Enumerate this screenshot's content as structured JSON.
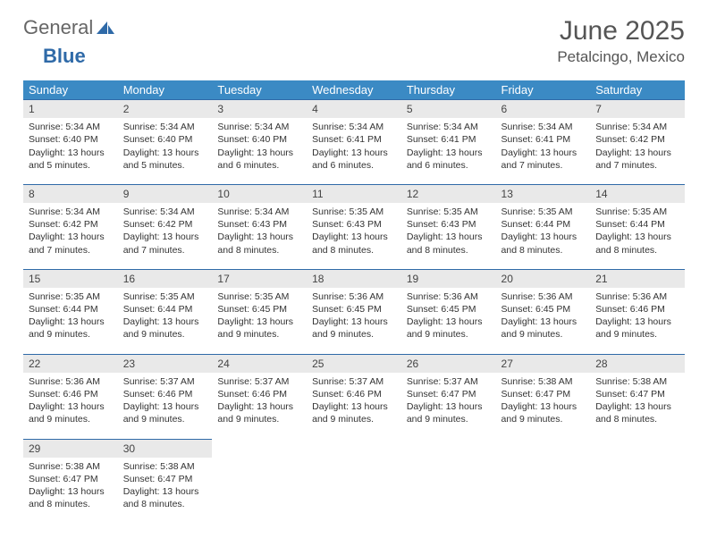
{
  "brand": {
    "part1": "General",
    "part2": "Blue"
  },
  "title": "June 2025",
  "location": "Petalcingo, Mexico",
  "colors": {
    "header_bg": "#3b8ac4",
    "header_text": "#ffffff",
    "daynum_bg": "#e9e9e9",
    "daynum_border": "#2f6aa8",
    "text": "#333333",
    "title_text": "#555555",
    "logo_blue": "#2f6aa8"
  },
  "weekdays": [
    "Sunday",
    "Monday",
    "Tuesday",
    "Wednesday",
    "Thursday",
    "Friday",
    "Saturday"
  ],
  "weeks": [
    [
      {
        "d": "1",
        "sr": "Sunrise: 5:34 AM",
        "ss": "Sunset: 6:40 PM",
        "dl1": "Daylight: 13 hours",
        "dl2": "and 5 minutes."
      },
      {
        "d": "2",
        "sr": "Sunrise: 5:34 AM",
        "ss": "Sunset: 6:40 PM",
        "dl1": "Daylight: 13 hours",
        "dl2": "and 5 minutes."
      },
      {
        "d": "3",
        "sr": "Sunrise: 5:34 AM",
        "ss": "Sunset: 6:40 PM",
        "dl1": "Daylight: 13 hours",
        "dl2": "and 6 minutes."
      },
      {
        "d": "4",
        "sr": "Sunrise: 5:34 AM",
        "ss": "Sunset: 6:41 PM",
        "dl1": "Daylight: 13 hours",
        "dl2": "and 6 minutes."
      },
      {
        "d": "5",
        "sr": "Sunrise: 5:34 AM",
        "ss": "Sunset: 6:41 PM",
        "dl1": "Daylight: 13 hours",
        "dl2": "and 6 minutes."
      },
      {
        "d": "6",
        "sr": "Sunrise: 5:34 AM",
        "ss": "Sunset: 6:41 PM",
        "dl1": "Daylight: 13 hours",
        "dl2": "and 7 minutes."
      },
      {
        "d": "7",
        "sr": "Sunrise: 5:34 AM",
        "ss": "Sunset: 6:42 PM",
        "dl1": "Daylight: 13 hours",
        "dl2": "and 7 minutes."
      }
    ],
    [
      {
        "d": "8",
        "sr": "Sunrise: 5:34 AM",
        "ss": "Sunset: 6:42 PM",
        "dl1": "Daylight: 13 hours",
        "dl2": "and 7 minutes."
      },
      {
        "d": "9",
        "sr": "Sunrise: 5:34 AM",
        "ss": "Sunset: 6:42 PM",
        "dl1": "Daylight: 13 hours",
        "dl2": "and 7 minutes."
      },
      {
        "d": "10",
        "sr": "Sunrise: 5:34 AM",
        "ss": "Sunset: 6:43 PM",
        "dl1": "Daylight: 13 hours",
        "dl2": "and 8 minutes."
      },
      {
        "d": "11",
        "sr": "Sunrise: 5:35 AM",
        "ss": "Sunset: 6:43 PM",
        "dl1": "Daylight: 13 hours",
        "dl2": "and 8 minutes."
      },
      {
        "d": "12",
        "sr": "Sunrise: 5:35 AM",
        "ss": "Sunset: 6:43 PM",
        "dl1": "Daylight: 13 hours",
        "dl2": "and 8 minutes."
      },
      {
        "d": "13",
        "sr": "Sunrise: 5:35 AM",
        "ss": "Sunset: 6:44 PM",
        "dl1": "Daylight: 13 hours",
        "dl2": "and 8 minutes."
      },
      {
        "d": "14",
        "sr": "Sunrise: 5:35 AM",
        "ss": "Sunset: 6:44 PM",
        "dl1": "Daylight: 13 hours",
        "dl2": "and 8 minutes."
      }
    ],
    [
      {
        "d": "15",
        "sr": "Sunrise: 5:35 AM",
        "ss": "Sunset: 6:44 PM",
        "dl1": "Daylight: 13 hours",
        "dl2": "and 9 minutes."
      },
      {
        "d": "16",
        "sr": "Sunrise: 5:35 AM",
        "ss": "Sunset: 6:44 PM",
        "dl1": "Daylight: 13 hours",
        "dl2": "and 9 minutes."
      },
      {
        "d": "17",
        "sr": "Sunrise: 5:35 AM",
        "ss": "Sunset: 6:45 PM",
        "dl1": "Daylight: 13 hours",
        "dl2": "and 9 minutes."
      },
      {
        "d": "18",
        "sr": "Sunrise: 5:36 AM",
        "ss": "Sunset: 6:45 PM",
        "dl1": "Daylight: 13 hours",
        "dl2": "and 9 minutes."
      },
      {
        "d": "19",
        "sr": "Sunrise: 5:36 AM",
        "ss": "Sunset: 6:45 PM",
        "dl1": "Daylight: 13 hours",
        "dl2": "and 9 minutes."
      },
      {
        "d": "20",
        "sr": "Sunrise: 5:36 AM",
        "ss": "Sunset: 6:45 PM",
        "dl1": "Daylight: 13 hours",
        "dl2": "and 9 minutes."
      },
      {
        "d": "21",
        "sr": "Sunrise: 5:36 AM",
        "ss": "Sunset: 6:46 PM",
        "dl1": "Daylight: 13 hours",
        "dl2": "and 9 minutes."
      }
    ],
    [
      {
        "d": "22",
        "sr": "Sunrise: 5:36 AM",
        "ss": "Sunset: 6:46 PM",
        "dl1": "Daylight: 13 hours",
        "dl2": "and 9 minutes."
      },
      {
        "d": "23",
        "sr": "Sunrise: 5:37 AM",
        "ss": "Sunset: 6:46 PM",
        "dl1": "Daylight: 13 hours",
        "dl2": "and 9 minutes."
      },
      {
        "d": "24",
        "sr": "Sunrise: 5:37 AM",
        "ss": "Sunset: 6:46 PM",
        "dl1": "Daylight: 13 hours",
        "dl2": "and 9 minutes."
      },
      {
        "d": "25",
        "sr": "Sunrise: 5:37 AM",
        "ss": "Sunset: 6:46 PM",
        "dl1": "Daylight: 13 hours",
        "dl2": "and 9 minutes."
      },
      {
        "d": "26",
        "sr": "Sunrise: 5:37 AM",
        "ss": "Sunset: 6:47 PM",
        "dl1": "Daylight: 13 hours",
        "dl2": "and 9 minutes."
      },
      {
        "d": "27",
        "sr": "Sunrise: 5:38 AM",
        "ss": "Sunset: 6:47 PM",
        "dl1": "Daylight: 13 hours",
        "dl2": "and 9 minutes."
      },
      {
        "d": "28",
        "sr": "Sunrise: 5:38 AM",
        "ss": "Sunset: 6:47 PM",
        "dl1": "Daylight: 13 hours",
        "dl2": "and 8 minutes."
      }
    ],
    [
      {
        "d": "29",
        "sr": "Sunrise: 5:38 AM",
        "ss": "Sunset: 6:47 PM",
        "dl1": "Daylight: 13 hours",
        "dl2": "and 8 minutes."
      },
      {
        "d": "30",
        "sr": "Sunrise: 5:38 AM",
        "ss": "Sunset: 6:47 PM",
        "dl1": "Daylight: 13 hours",
        "dl2": "and 8 minutes."
      },
      null,
      null,
      null,
      null,
      null
    ]
  ]
}
